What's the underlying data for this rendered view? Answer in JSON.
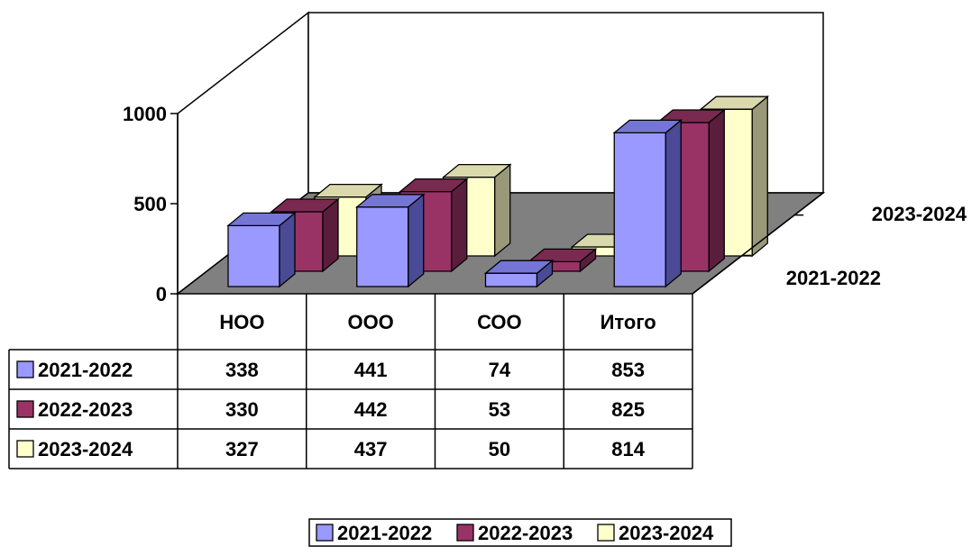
{
  "chart_data": {
    "type": "bar",
    "subtype": "3d-clustered-column-with-data-table",
    "categories": [
      "НОО",
      "ООО",
      "СОО",
      "Итого"
    ],
    "series": [
      {
        "name": "2021-2022",
        "values": [
          338,
          441,
          74,
          853
        ],
        "color": "#9999FF",
        "side_color": "#4A4A96",
        "top_color": "#7575D6"
      },
      {
        "name": "2022-2023",
        "values": [
          330,
          442,
          53,
          825
        ],
        "color": "#993366",
        "side_color": "#5A1E3C",
        "top_color": "#7A2A51"
      },
      {
        "name": "2023-2024",
        "values": [
          327,
          437,
          50,
          814
        ],
        "color": "#FFFFCC",
        "side_color": "#99997A",
        "top_color": "#D9D9AD"
      }
    ],
    "y_ticks": [
      "0",
      "500",
      "1000"
    ],
    "ylim": [
      0,
      1000
    ],
    "depth_axis_labels": [
      "2021-2022",
      "2023-2024"
    ],
    "floor_color": "#808080",
    "data_table": true,
    "legend_placement": "bottom",
    "grid": false
  }
}
